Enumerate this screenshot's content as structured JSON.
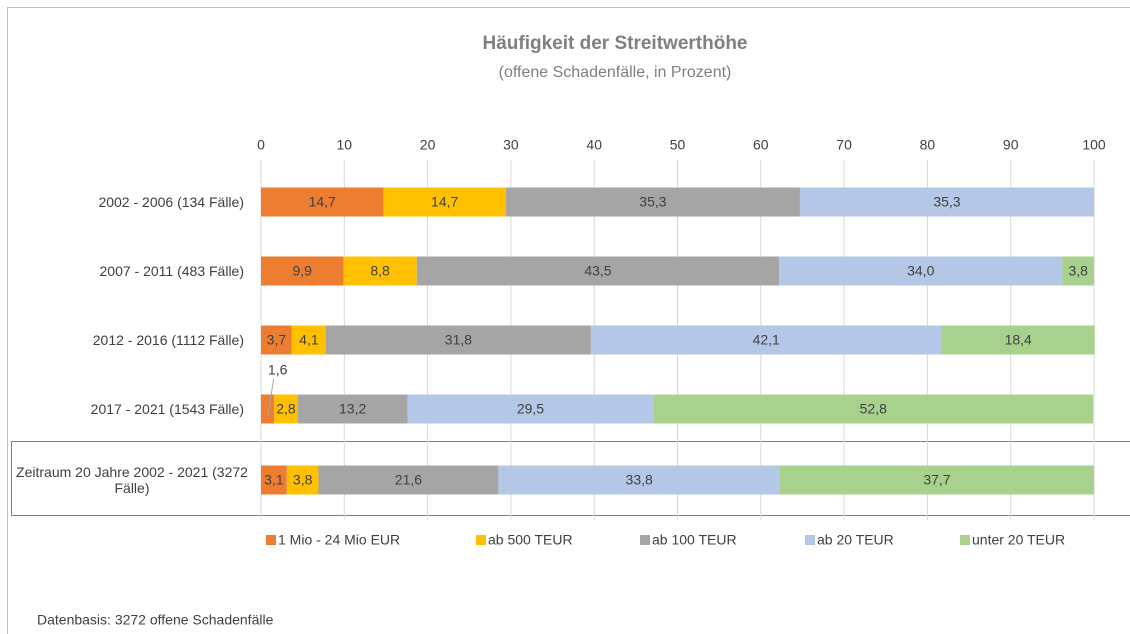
{
  "chart_data": {
    "type": "stacked-bar-horizontal",
    "title": "Häufigkeit der Streitwerthöhe",
    "subtitle": "(offene Schadenfälle, in Prozent)",
    "categories": [
      "2002 - 2006 (134 Fälle)",
      "2007 - 2011 (483 Fälle)",
      "2012 - 2016 (1112 Fälle)",
      "2017 - 2021 (1543 Fälle)",
      "Zeitraum 20 Jahre 2002 - 2021 (3272 Fälle)"
    ],
    "series": [
      {
        "name": "1 Mio - 24 Mio EUR",
        "color": "#ed7d31",
        "values": [
          14.7,
          9.9,
          3.7,
          1.6,
          3.1
        ],
        "value_labels": [
          "14,7",
          "9,9",
          "3,7",
          "1,6",
          "3,1"
        ]
      },
      {
        "name": "ab 500 TEUR",
        "color": "#ffc000",
        "values": [
          14.7,
          8.8,
          4.1,
          2.8,
          3.8
        ],
        "value_labels": [
          "14,7",
          "8,8",
          "4,1",
          "2,8",
          "3,8"
        ]
      },
      {
        "name": "ab 100 TEUR",
        "color": "#a5a5a5",
        "values": [
          35.3,
          43.5,
          31.8,
          13.2,
          21.6
        ],
        "value_labels": [
          "35,3",
          "43,5",
          "31,8",
          "13,2",
          "21,6"
        ]
      },
      {
        "name": "ab 20 TEUR",
        "color": "#b4c7e7",
        "values": [
          35.3,
          34.0,
          42.1,
          29.5,
          33.8
        ],
        "value_labels": [
          "35,3",
          "34,0",
          "42,1",
          "29,5",
          "33,8"
        ]
      },
      {
        "name": "unter 20 TEUR",
        "color": "#a9d18e",
        "values": [
          null,
          3.8,
          18.4,
          52.8,
          37.7
        ],
        "value_labels": [
          null,
          "3,8",
          "18,4",
          "52,8",
          "37,7"
        ]
      }
    ],
    "xlim": [
      0,
      100
    ],
    "xticks": [
      0,
      10,
      20,
      30,
      40,
      50,
      60,
      70,
      80,
      90,
      100
    ],
    "grid": true,
    "legend": "bottom",
    "footnote": "Datenbasis: 3272 offene Schadenfälle"
  }
}
